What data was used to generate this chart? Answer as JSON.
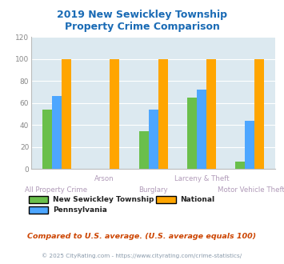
{
  "title": "2019 New Sewickley Township\nProperty Crime Comparison",
  "title_color": "#1a6bb5",
  "categories": [
    "All Property Crime",
    "Arson",
    "Burglary",
    "Larceny & Theft",
    "Motor Vehicle Theft"
  ],
  "series": {
    "New Sewickley Township": [
      54,
      0,
      34,
      65,
      7
    ],
    "Pennsylvania": [
      66,
      0,
      54,
      72,
      44
    ],
    "National": [
      100,
      100,
      100,
      100,
      100
    ]
  },
  "colors": {
    "New Sewickley Township": "#6abf4b",
    "Pennsylvania": "#4da6ff",
    "National": "#ffa500"
  },
  "ylim": [
    0,
    120
  ],
  "yticks": [
    0,
    20,
    40,
    60,
    80,
    100,
    120
  ],
  "plot_bg": "#dce9f0",
  "fig_bg": "#ffffff",
  "xlabel_color_bottom": "#b09ab8",
  "xlabel_color_top": "#b09ab8",
  "footer_text": "Compared to U.S. average. (U.S. average equals 100)",
  "footer_color": "#cc4400",
  "copyright_text": "© 2025 CityRating.com - https://www.cityrating.com/crime-statistics/",
  "copyright_color": "#8899aa",
  "bar_width": 0.2,
  "grid_color": "#ffffff",
  "legend_text_color": "#222222"
}
